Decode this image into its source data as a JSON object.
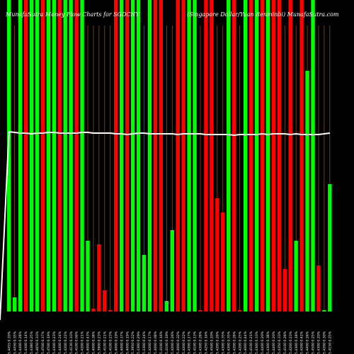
{
  "chart_data": {
    "type": "bar",
    "title": "MunafaSutra Money Flow Charts for SGDCNY",
    "subtitle": "(Singapore Dollar/Yuan Renminbi) MunafaSutra.com",
    "colors": {
      "up": "#00ff00",
      "down": "#ff0000",
      "grid": "#b8640a",
      "line": "#ffffff",
      "background": "#000000"
    },
    "ylim": [
      0,
      440
    ],
    "categories": [
      "5.4455 0.20%",
      "5.4450 0.35%",
      "5.4400 0.28%",
      "5.4300 0.14%",
      "5.4380 0.25%",
      "5.4650 0.33%",
      "5.4500 0.37%",
      "5.4500 0.19%",
      "5.4300 0.23%",
      "5.4400 0.24%",
      "5.4200 0.22%",
      "5.4130 0.33%",
      "5.4100 0.06%",
      "5.4200 0.21%",
      "5.4000 0.43%",
      "5.4000 0.38%",
      "5.3900 0.23%",
      "5.4100 0.21%",
      "5.4100 0.23%",
      "5.4000 0.19%",
      "5.4000 0.37%",
      "5.4000 0.19%",
      "5.3950 0.22%",
      "5.4300 0.29%",
      "5.4300 0.24%",
      "5.4200 0.17%",
      "5.4000 0.08%",
      "5.4100 0.16%",
      "5.4100 0.19%",
      "5.4200 0.26%",
      "5.4000 0.32%",
      "5.4200 0.22%",
      "5.4300 0.17%",
      "5.4100 0.13%",
      "5.4300 0.28%",
      "5.4250 0.16%",
      "5.4500 0.20%",
      "5.4200 0.26%",
      "5.4300 0.35%",
      "5.4300 0.35%",
      "5.4200 0.28%",
      "5.4200 0.25%",
      "5.4000 0.44%",
      "5.4100 0.21%",
      "5.4300 0.33%",
      "5.4400 0.20%",
      "5.4300 0.38%",
      "5.4400 0.20%",
      "5.4350 0.33%",
      "5.4100 0.28%",
      "5.4200 0.23%",
      "5.4300 0.18%",
      "5.4200 0.42%",
      "5.4400 0.26%",
      "5.4500 0.25%",
      "5.4300 0.20%",
      "5.4200 0.30%",
      "5.4150 0.25%"
    ],
    "series": [
      {
        "values": [
          440,
          20,
          440,
          440,
          440,
          440,
          440,
          440,
          440,
          440,
          440,
          440,
          440,
          440,
          100,
          4,
          95,
          30,
          2,
          440,
          440,
          440,
          440,
          440,
          80,
          440,
          440,
          440,
          15,
          115,
          440,
          440,
          440,
          440,
          2,
          440,
          440,
          160,
          140,
          440,
          440,
          2,
          440,
          440,
          440,
          440,
          440,
          440,
          440,
          60,
          440,
          100,
          440,
          340,
          440,
          65,
          2,
          180
        ]
      },
      {
        "values": [
          186,
          187,
          188,
          188,
          189,
          188,
          188,
          187,
          187,
          188,
          188,
          188,
          188,
          187,
          187,
          188,
          188,
          188,
          188,
          189,
          189,
          190,
          189,
          188,
          188,
          189,
          189,
          189,
          189,
          189,
          190,
          189,
          189,
          189,
          189,
          190,
          190,
          190,
          190,
          190,
          191,
          190,
          190,
          190,
          190,
          189,
          190,
          189,
          189,
          189,
          190,
          189,
          190,
          190,
          190,
          190,
          189,
          188
        ]
      }
    ],
    "bar_colors": [
      "up",
      "up",
      "up",
      "down",
      "up",
      "up",
      "down",
      "up",
      "up",
      "down",
      "up",
      "up",
      "down",
      "up",
      "up",
      "down",
      "down",
      "down",
      "down",
      "down",
      "up",
      "down",
      "up",
      "up",
      "up",
      "up",
      "down",
      "down",
      "up",
      "up",
      "down",
      "down",
      "up",
      "up",
      "down",
      "down",
      "down",
      "down",
      "down",
      "up",
      "down",
      "down",
      "up",
      "down",
      "up",
      "down",
      "up",
      "down",
      "down",
      "down",
      "down",
      "up",
      "down",
      "up",
      "up",
      "down",
      "up",
      "up"
    ],
    "grid": true
  }
}
